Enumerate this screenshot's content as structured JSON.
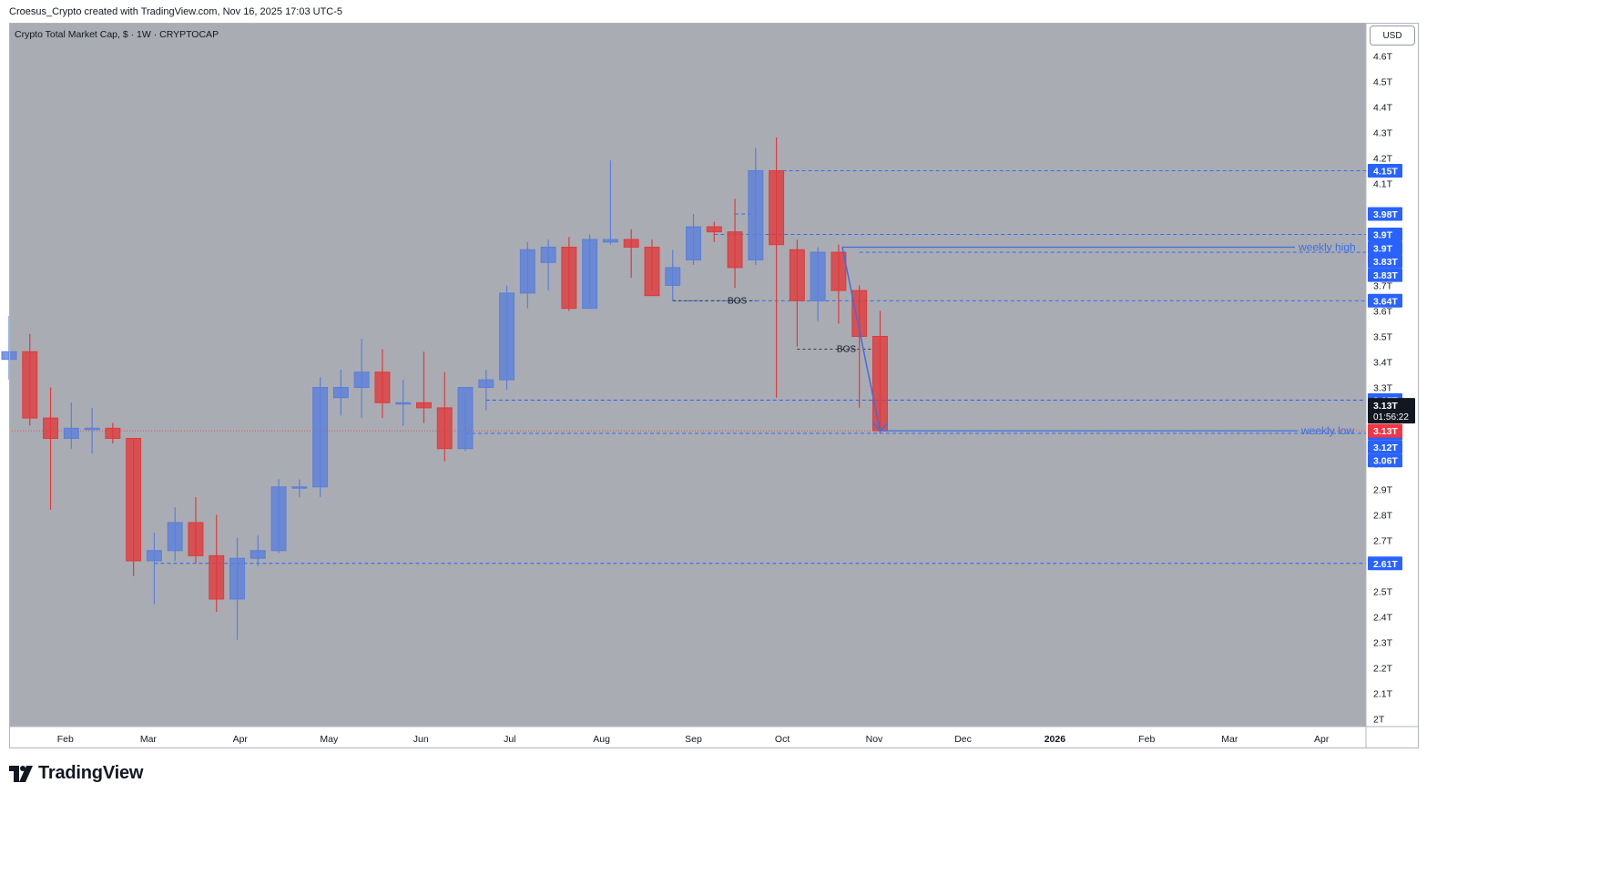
{
  "attribution": "Croesus_Crypto created with TradingView.com, Nov 16, 2025 17:03 UTC-5",
  "brand": "TradingView",
  "currency_button": "USD",
  "colors": {
    "up": "#5b7fdb",
    "down": "#e03b3b",
    "background": "#a9acb2",
    "level": "#2962ff",
    "annotation": "#3d6fe0"
  },
  "chart_data": {
    "type": "candlestick",
    "title": "Crypto Total Market Cap, $ · 1W · CRYPTOCAP",
    "y_ticks": [
      "4.6T",
      "4.5T",
      "4.4T",
      "4.3T",
      "4.2T",
      "4.1T",
      "4T",
      "3.9T",
      "3.8T",
      "3.7T",
      "3.6T",
      "3.5T",
      "3.4T",
      "3.3T",
      "3.2T",
      "3.1T",
      "3T",
      "2.9T",
      "2.8T",
      "2.7T",
      "2.6T",
      "2.5T",
      "2.4T",
      "2.3T",
      "2.2T",
      "2.1T",
      "2T"
    ],
    "y_range": [
      1.97,
      4.73
    ],
    "x_range": [
      "2025-01-13",
      "2026-04-16"
    ],
    "x_labels": [
      {
        "label": "Feb",
        "date": "2025-02-01",
        "bold": false
      },
      {
        "label": "Mar",
        "date": "2025-03-01",
        "bold": false
      },
      {
        "label": "Apr",
        "date": "2025-04-01",
        "bold": false
      },
      {
        "label": "May",
        "date": "2025-05-01",
        "bold": false
      },
      {
        "label": "Jun",
        "date": "2025-06-01",
        "bold": false
      },
      {
        "label": "Jul",
        "date": "2025-07-01",
        "bold": false
      },
      {
        "label": "Aug",
        "date": "2025-08-01",
        "bold": false
      },
      {
        "label": "Sep",
        "date": "2025-09-01",
        "bold": false
      },
      {
        "label": "Oct",
        "date": "2025-10-01",
        "bold": false
      },
      {
        "label": "Nov",
        "date": "2025-11-01",
        "bold": false
      },
      {
        "label": "Dec",
        "date": "2025-12-01",
        "bold": false
      },
      {
        "label": "2026",
        "date": "2026-01-01",
        "bold": true
      },
      {
        "label": "Feb",
        "date": "2026-02-01",
        "bold": false
      },
      {
        "label": "Mar",
        "date": "2026-03-01",
        "bold": false
      },
      {
        "label": "Apr",
        "date": "2026-04-01",
        "bold": false
      }
    ],
    "candles": [
      {
        "date": "2025-01-13",
        "o": 3.41,
        "h": 3.58,
        "l": 3.33,
        "c": 3.44
      },
      {
        "date": "2025-01-20",
        "o": 3.44,
        "h": 3.51,
        "l": 3.15,
        "c": 3.18
      },
      {
        "date": "2025-01-27",
        "o": 3.18,
        "h": 3.3,
        "l": 2.82,
        "c": 3.1
      },
      {
        "date": "2025-02-03",
        "o": 3.1,
        "h": 3.24,
        "l": 3.06,
        "c": 3.14
      },
      {
        "date": "2025-02-10",
        "o": 3.14,
        "h": 3.22,
        "l": 3.04,
        "c": 3.14
      },
      {
        "date": "2025-02-17",
        "o": 3.14,
        "h": 3.16,
        "l": 3.08,
        "c": 3.1
      },
      {
        "date": "2025-02-24",
        "o": 3.1,
        "h": 3.1,
        "l": 2.56,
        "c": 2.62
      },
      {
        "date": "2025-03-03",
        "o": 2.62,
        "h": 2.73,
        "l": 2.45,
        "c": 2.66
      },
      {
        "date": "2025-03-10",
        "o": 2.66,
        "h": 2.83,
        "l": 2.62,
        "c": 2.77
      },
      {
        "date": "2025-03-17",
        "o": 2.77,
        "h": 2.87,
        "l": 2.61,
        "c": 2.64
      },
      {
        "date": "2025-03-24",
        "o": 2.64,
        "h": 2.8,
        "l": 2.42,
        "c": 2.47
      },
      {
        "date": "2025-03-31",
        "o": 2.47,
        "h": 2.71,
        "l": 2.31,
        "c": 2.63
      },
      {
        "date": "2025-04-07",
        "o": 2.63,
        "h": 2.72,
        "l": 2.6,
        "c": 2.66
      },
      {
        "date": "2025-04-14",
        "o": 2.66,
        "h": 2.94,
        "l": 2.65,
        "c": 2.91
      },
      {
        "date": "2025-04-21",
        "o": 2.91,
        "h": 2.94,
        "l": 2.87,
        "c": 2.91
      },
      {
        "date": "2025-04-28",
        "o": 2.91,
        "h": 3.34,
        "l": 2.87,
        "c": 3.3
      },
      {
        "date": "2025-05-05",
        "o": 3.26,
        "h": 3.37,
        "l": 3.19,
        "c": 3.3
      },
      {
        "date": "2025-05-12",
        "o": 3.3,
        "h": 3.49,
        "l": 3.18,
        "c": 3.36
      },
      {
        "date": "2025-05-19",
        "o": 3.36,
        "h": 3.45,
        "l": 3.18,
        "c": 3.24
      },
      {
        "date": "2025-05-26",
        "o": 3.24,
        "h": 3.33,
        "l": 3.15,
        "c": 3.24
      },
      {
        "date": "2025-06-02",
        "o": 3.24,
        "h": 3.44,
        "l": 3.16,
        "c": 3.22
      },
      {
        "date": "2025-06-09",
        "o": 3.22,
        "h": 3.36,
        "l": 3.01,
        "c": 3.06
      },
      {
        "date": "2025-06-16",
        "o": 3.06,
        "h": 3.28,
        "l": 3.05,
        "c": 3.3
      },
      {
        "date": "2025-06-23",
        "o": 3.3,
        "h": 3.37,
        "l": 3.21,
        "c": 3.33
      },
      {
        "date": "2025-06-30",
        "o": 3.33,
        "h": 3.7,
        "l": 3.29,
        "c": 3.67
      },
      {
        "date": "2025-07-07",
        "o": 3.67,
        "h": 3.87,
        "l": 3.61,
        "c": 3.84
      },
      {
        "date": "2025-07-14",
        "o": 3.79,
        "h": 3.88,
        "l": 3.68,
        "c": 3.85
      },
      {
        "date": "2025-07-21",
        "o": 3.85,
        "h": 3.89,
        "l": 3.6,
        "c": 3.61
      },
      {
        "date": "2025-07-28",
        "o": 3.61,
        "h": 3.9,
        "l": 3.62,
        "c": 3.88
      },
      {
        "date": "2025-08-04",
        "o": 3.87,
        "h": 4.19,
        "l": 3.86,
        "c": 3.88
      },
      {
        "date": "2025-08-11",
        "o": 3.88,
        "h": 3.92,
        "l": 3.73,
        "c": 3.85
      },
      {
        "date": "2025-08-18",
        "o": 3.85,
        "h": 3.88,
        "l": 3.68,
        "c": 3.66
      },
      {
        "date": "2025-08-25",
        "o": 3.7,
        "h": 3.84,
        "l": 3.64,
        "c": 3.77
      },
      {
        "date": "2025-09-01",
        "o": 3.8,
        "h": 3.98,
        "l": 3.78,
        "c": 3.93
      },
      {
        "date": "2025-09-08",
        "o": 3.93,
        "h": 3.95,
        "l": 3.87,
        "c": 3.91
      },
      {
        "date": "2025-09-15",
        "o": 3.91,
        "h": 4.04,
        "l": 3.69,
        "c": 3.77
      },
      {
        "date": "2025-09-22",
        "o": 3.8,
        "h": 4.24,
        "l": 3.78,
        "c": 4.15
      },
      {
        "date": "2025-09-29",
        "o": 4.15,
        "h": 4.28,
        "l": 3.26,
        "c": 3.86
      },
      {
        "date": "2025-10-06",
        "o": 3.84,
        "h": 3.88,
        "l": 3.46,
        "c": 3.64
      },
      {
        "date": "2025-10-13",
        "o": 3.64,
        "h": 3.85,
        "l": 3.56,
        "c": 3.83
      },
      {
        "date": "2025-10-20",
        "o": 3.83,
        "h": 3.86,
        "l": 3.55,
        "c": 3.68
      },
      {
        "date": "2025-10-27",
        "o": 3.68,
        "h": 3.7,
        "l": 3.22,
        "c": 3.5
      },
      {
        "date": "2025-11-03",
        "o": 3.5,
        "h": 3.6,
        "l": 3.12,
        "c": 3.13
      }
    ],
    "levels": [
      {
        "value": 4.15,
        "label": "4.15T"
      },
      {
        "value": 3.98,
        "label": "3.98T"
      },
      {
        "value": 3.9,
        "label": "3.9T"
      },
      {
        "value": 3.9,
        "label": "3.9T"
      },
      {
        "value": 3.83,
        "label": "3.83T"
      },
      {
        "value": 3.83,
        "label": "3.83T"
      },
      {
        "value": 3.64,
        "label": "3.64T"
      },
      {
        "value": 3.25,
        "label": "3.25T"
      },
      {
        "value": 3.12,
        "label": "3.12T"
      },
      {
        "value": 3.12,
        "label": "3.12T"
      },
      {
        "value": 3.06,
        "label": "3.06T"
      },
      {
        "value": 2.61,
        "label": "2.61T"
      }
    ],
    "current_price": {
      "value": 3.13,
      "label": "3.13T",
      "countdown": "01:56:22",
      "red_label": "3.13T"
    },
    "annotations": {
      "weekly_high": {
        "label": "weekly high",
        "value": 3.85
      },
      "weekly_low": {
        "label": "weekly low",
        "value": 3.13
      },
      "bos": [
        {
          "label": "BOS",
          "value": 3.64
        },
        {
          "label": "BOS",
          "value": 3.45
        }
      ]
    }
  }
}
